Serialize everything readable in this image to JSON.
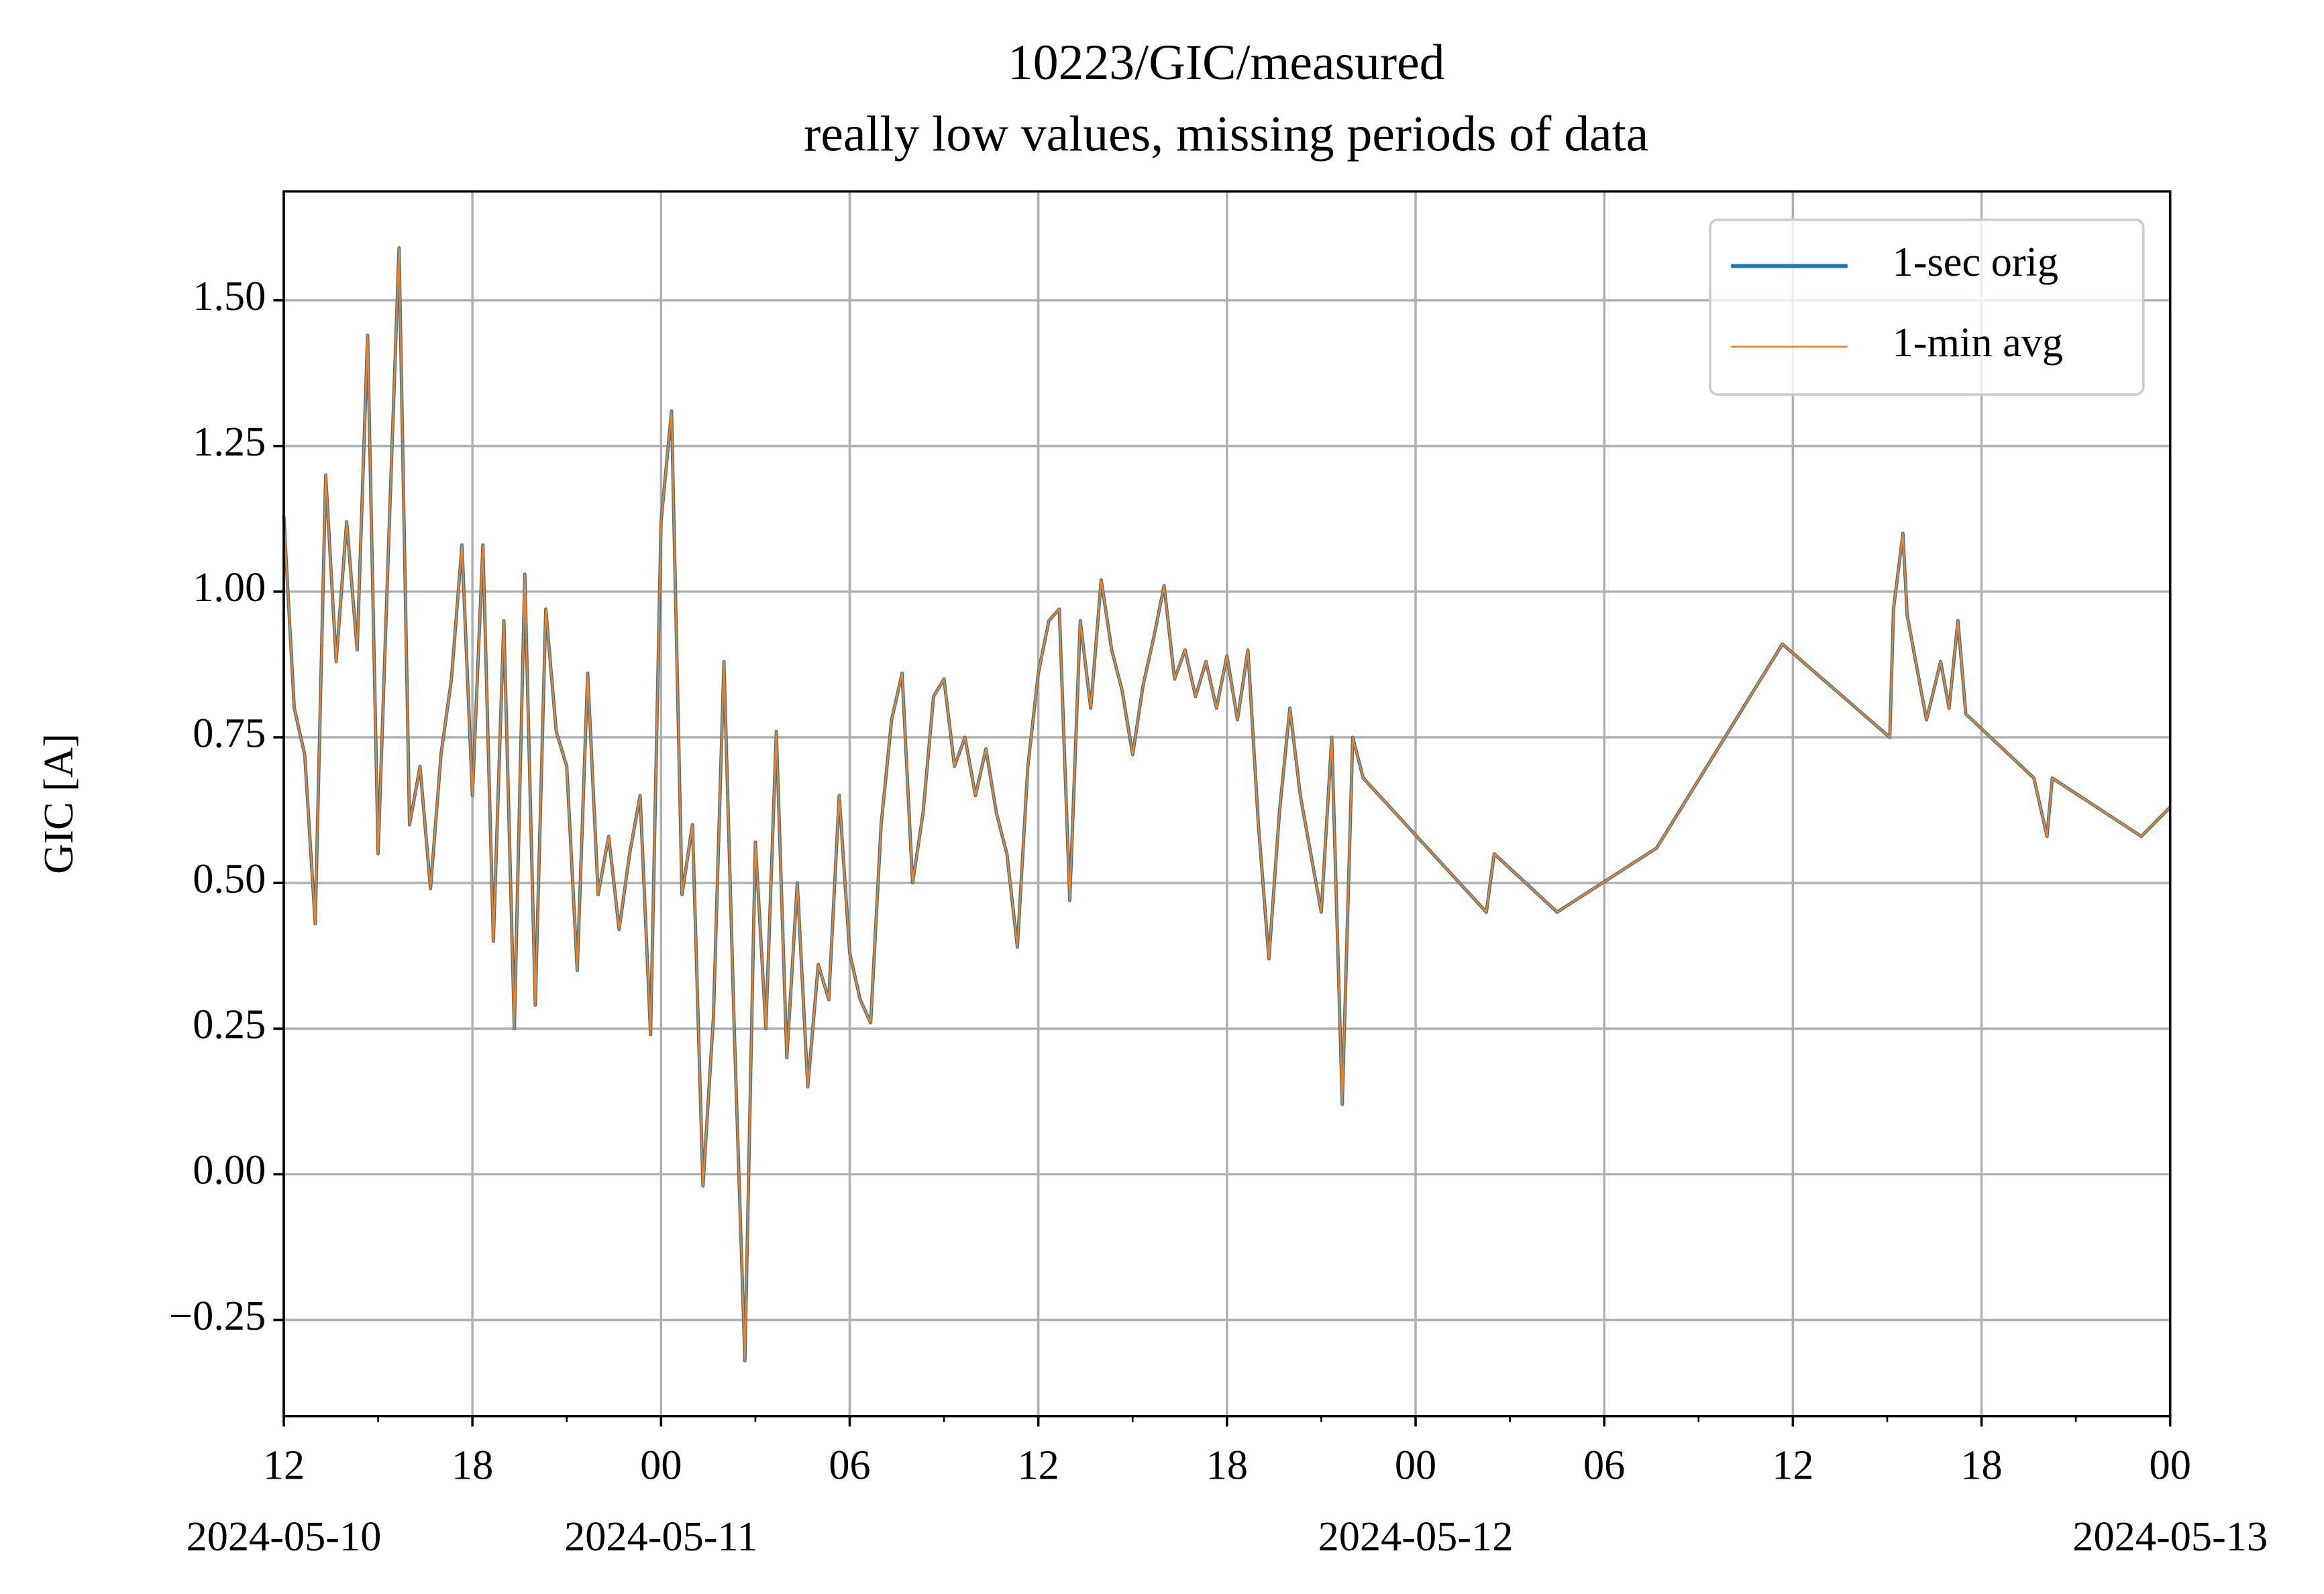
{
  "chart_data": {
    "type": "line",
    "title": "10223/GIC/measured",
    "subtitle": "really low values, missing periods of data",
    "y_label": "GIC [A]",
    "xlim": [
      "2024-05-10T12:00",
      "2024-05-13T00:00"
    ],
    "xticks": [
      {
        "value": "2024-05-10T12:00",
        "label": "12",
        "date": "2024-05-10"
      },
      {
        "value": "2024-05-10T18:00",
        "label": "18"
      },
      {
        "value": "2024-05-11T00:00",
        "label": "00",
        "date": "2024-05-11"
      },
      {
        "value": "2024-05-11T06:00",
        "label": "06"
      },
      {
        "value": "2024-05-11T12:00",
        "label": "12"
      },
      {
        "value": "2024-05-11T18:00",
        "label": "18"
      },
      {
        "value": "2024-05-12T00:00",
        "label": "00",
        "date": "2024-05-12"
      },
      {
        "value": "2024-05-12T06:00",
        "label": "06"
      },
      {
        "value": "2024-05-12T12:00",
        "label": "12"
      },
      {
        "value": "2024-05-12T18:00",
        "label": "18"
      },
      {
        "value": "2024-05-13T00:00",
        "label": "00",
        "date": "2024-05-13"
      }
    ],
    "xminorticks": [
      "2024-05-10T15:00",
      "2024-05-10T21:00",
      "2024-05-11T03:00",
      "2024-05-11T09:00",
      "2024-05-11T15:00",
      "2024-05-11T21:00",
      "2024-05-12T03:00",
      "2024-05-12T09:00",
      "2024-05-12T15:00",
      "2024-05-12T21:00"
    ],
    "ylim": [
      -0.415,
      1.687
    ],
    "yticks": [
      {
        "value": -0.25,
        "label": "−0.25"
      },
      {
        "value": 0,
        "label": "0.00"
      },
      {
        "value": 0.25,
        "label": "0.25"
      },
      {
        "value": 0.5,
        "label": "0.50"
      },
      {
        "value": 0.75,
        "label": "0.75"
      },
      {
        "value": 1,
        "label": "1.00"
      },
      {
        "value": 1.25,
        "label": "1.25"
      },
      {
        "value": 1.5,
        "label": "1.50"
      }
    ],
    "grid": true,
    "legend": "upper right",
    "x": [
      "2024-05-10T12:00",
      "2024-05-10T12:20",
      "2024-05-10T12:40",
      "2024-05-10T13:00",
      "2024-05-10T13:20",
      "2024-05-10T13:40",
      "2024-05-10T14:00",
      "2024-05-10T14:20",
      "2024-05-10T14:40",
      "2024-05-10T15:00",
      "2024-05-10T15:20",
      "2024-05-10T15:40",
      "2024-05-10T16:00",
      "2024-05-10T16:20",
      "2024-05-10T16:40",
      "2024-05-10T17:00",
      "2024-05-10T17:20",
      "2024-05-10T17:40",
      "2024-05-10T18:00",
      "2024-05-10T18:20",
      "2024-05-10T18:40",
      "2024-05-10T19:00",
      "2024-05-10T19:20",
      "2024-05-10T19:40",
      "2024-05-10T20:00",
      "2024-05-10T20:20",
      "2024-05-10T20:40",
      "2024-05-10T21:00",
      "2024-05-10T21:20",
      "2024-05-10T21:40",
      "2024-05-10T22:00",
      "2024-05-10T22:20",
      "2024-05-10T22:40",
      "2024-05-10T23:00",
      "2024-05-10T23:20",
      "2024-05-10T23:40",
      "2024-05-11T00:00",
      "2024-05-11T00:20",
      "2024-05-11T00:40",
      "2024-05-11T01:00",
      "2024-05-11T01:20",
      "2024-05-11T01:40",
      "2024-05-11T02:00",
      "2024-05-11T02:20",
      "2024-05-11T02:40",
      "2024-05-11T03:00",
      "2024-05-11T03:20",
      "2024-05-11T03:40",
      "2024-05-11T04:00",
      "2024-05-11T04:20",
      "2024-05-11T04:40",
      "2024-05-11T05:00",
      "2024-05-11T05:20",
      "2024-05-11T05:40",
      "2024-05-11T06:00",
      "2024-05-11T06:20",
      "2024-05-11T06:40",
      "2024-05-11T07:00",
      "2024-05-11T07:20",
      "2024-05-11T07:40",
      "2024-05-11T08:00",
      "2024-05-11T08:20",
      "2024-05-11T08:40",
      "2024-05-11T09:00",
      "2024-05-11T09:20",
      "2024-05-11T09:40",
      "2024-05-11T10:00",
      "2024-05-11T10:20",
      "2024-05-11T10:40",
      "2024-05-11T11:00",
      "2024-05-11T11:20",
      "2024-05-11T11:40",
      "2024-05-11T12:00",
      "2024-05-11T12:20",
      "2024-05-11T12:40",
      "2024-05-11T13:00",
      "2024-05-11T13:20",
      "2024-05-11T13:40",
      "2024-05-11T14:00",
      "2024-05-11T14:20",
      "2024-05-11T14:40",
      "2024-05-11T15:00",
      "2024-05-11T15:20",
      "2024-05-11T15:40",
      "2024-05-11T16:00",
      "2024-05-11T16:20",
      "2024-05-11T16:40",
      "2024-05-11T17:00",
      "2024-05-11T17:20",
      "2024-05-11T17:40",
      "2024-05-11T18:00",
      "2024-05-11T18:20",
      "2024-05-11T18:40",
      "2024-05-11T19:00",
      "2024-05-11T19:20",
      "2024-05-11T19:40",
      "2024-05-11T20:00",
      "2024-05-11T20:20",
      "2024-05-11T20:40",
      "2024-05-11T21:00",
      "2024-05-11T21:20",
      "2024-05-11T21:40",
      "2024-05-11T22:00",
      "2024-05-11T22:20",
      "2024-05-12T02:15",
      "2024-05-12T02:30",
      "2024-05-12T04:30",
      "2024-05-12T07:40",
      "2024-05-12T11:40",
      "2024-05-12T15:05",
      "2024-05-12T15:12",
      "2024-05-12T15:30",
      "2024-05-12T15:38",
      "2024-05-12T16:15",
      "2024-05-12T16:42",
      "2024-05-12T16:58",
      "2024-05-12T17:15",
      "2024-05-12T17:30",
      "2024-05-12T19:40",
      "2024-05-12T20:05",
      "2024-05-12T20:15",
      "2024-05-12T23:05",
      "2024-05-13T00:00"
    ],
    "series": [
      {
        "name": "1-sec orig",
        "color": "#1f77b4",
        "values": [
          1.13,
          0.8,
          0.72,
          0.43,
          1.2,
          0.88,
          1.12,
          0.9,
          1.44,
          0.55,
          1.08,
          1.59,
          0.6,
          0.7,
          0.49,
          0.72,
          0.85,
          1.08,
          0.65,
          1.08,
          0.4,
          0.95,
          0.25,
          1.03,
          0.29,
          0.97,
          0.76,
          0.7,
          0.35,
          0.86,
          0.48,
          0.58,
          0.42,
          0.55,
          0.65,
          0.24,
          1.12,
          1.31,
          0.48,
          0.6,
          -0.02,
          0.27,
          0.88,
          0.24,
          -0.32,
          0.57,
          0.25,
          0.76,
          0.2,
          0.5,
          0.15,
          0.36,
          0.3,
          0.65,
          0.38,
          0.3,
          0.26,
          0.6,
          0.78,
          0.86,
          0.5,
          0.62,
          0.82,
          0.85,
          0.7,
          0.75,
          0.65,
          0.73,
          0.62,
          0.55,
          0.39,
          0.7,
          0.86,
          0.95,
          0.97,
          0.47,
          0.95,
          0.8,
          1.02,
          0.9,
          0.83,
          0.72,
          0.84,
          0.92,
          1.01,
          0.85,
          0.9,
          0.82,
          0.88,
          0.8,
          0.89,
          0.78,
          0.9,
          0.6,
          0.37,
          0.62,
          0.8,
          0.65,
          0.55,
          0.45,
          0.75,
          0.12,
          0.75,
          0.68,
          0.45,
          0.55,
          0.45,
          0.56,
          0.91,
          0.75,
          0.97,
          1.1,
          0.96,
          0.78,
          0.88,
          0.8,
          0.95,
          0.79,
          0.68,
          0.58,
          0.68,
          0.58,
          0.63
        ]
      },
      {
        "name": "1-min avg",
        "color": "#ff7f0e",
        "values": [
          1.13,
          0.8,
          0.72,
          0.43,
          1.2,
          0.88,
          1.12,
          0.9,
          1.44,
          0.55,
          1.08,
          1.59,
          0.6,
          0.7,
          0.49,
          0.72,
          0.85,
          1.08,
          0.65,
          1.08,
          0.4,
          0.95,
          0.25,
          1.03,
          0.29,
          0.97,
          0.76,
          0.7,
          0.35,
          0.86,
          0.48,
          0.58,
          0.42,
          0.55,
          0.65,
          0.24,
          1.12,
          1.31,
          0.48,
          0.6,
          -0.02,
          0.27,
          0.88,
          0.24,
          -0.32,
          0.57,
          0.25,
          0.76,
          0.2,
          0.5,
          0.15,
          0.36,
          0.3,
          0.65,
          0.38,
          0.3,
          0.26,
          0.6,
          0.78,
          0.86,
          0.5,
          0.62,
          0.82,
          0.85,
          0.7,
          0.75,
          0.65,
          0.73,
          0.62,
          0.55,
          0.39,
          0.7,
          0.86,
          0.95,
          0.97,
          0.47,
          0.95,
          0.8,
          1.02,
          0.9,
          0.83,
          0.72,
          0.84,
          0.92,
          1.01,
          0.85,
          0.9,
          0.82,
          0.88,
          0.8,
          0.89,
          0.78,
          0.9,
          0.6,
          0.37,
          0.62,
          0.8,
          0.65,
          0.55,
          0.45,
          0.75,
          0.12,
          0.75,
          0.68,
          0.45,
          0.55,
          0.45,
          0.56,
          0.91,
          0.75,
          0.97,
          1.1,
          0.96,
          0.78,
          0.88,
          0.8,
          0.95,
          0.79,
          0.68,
          0.58,
          0.68,
          0.58,
          0.63
        ]
      }
    ]
  }
}
